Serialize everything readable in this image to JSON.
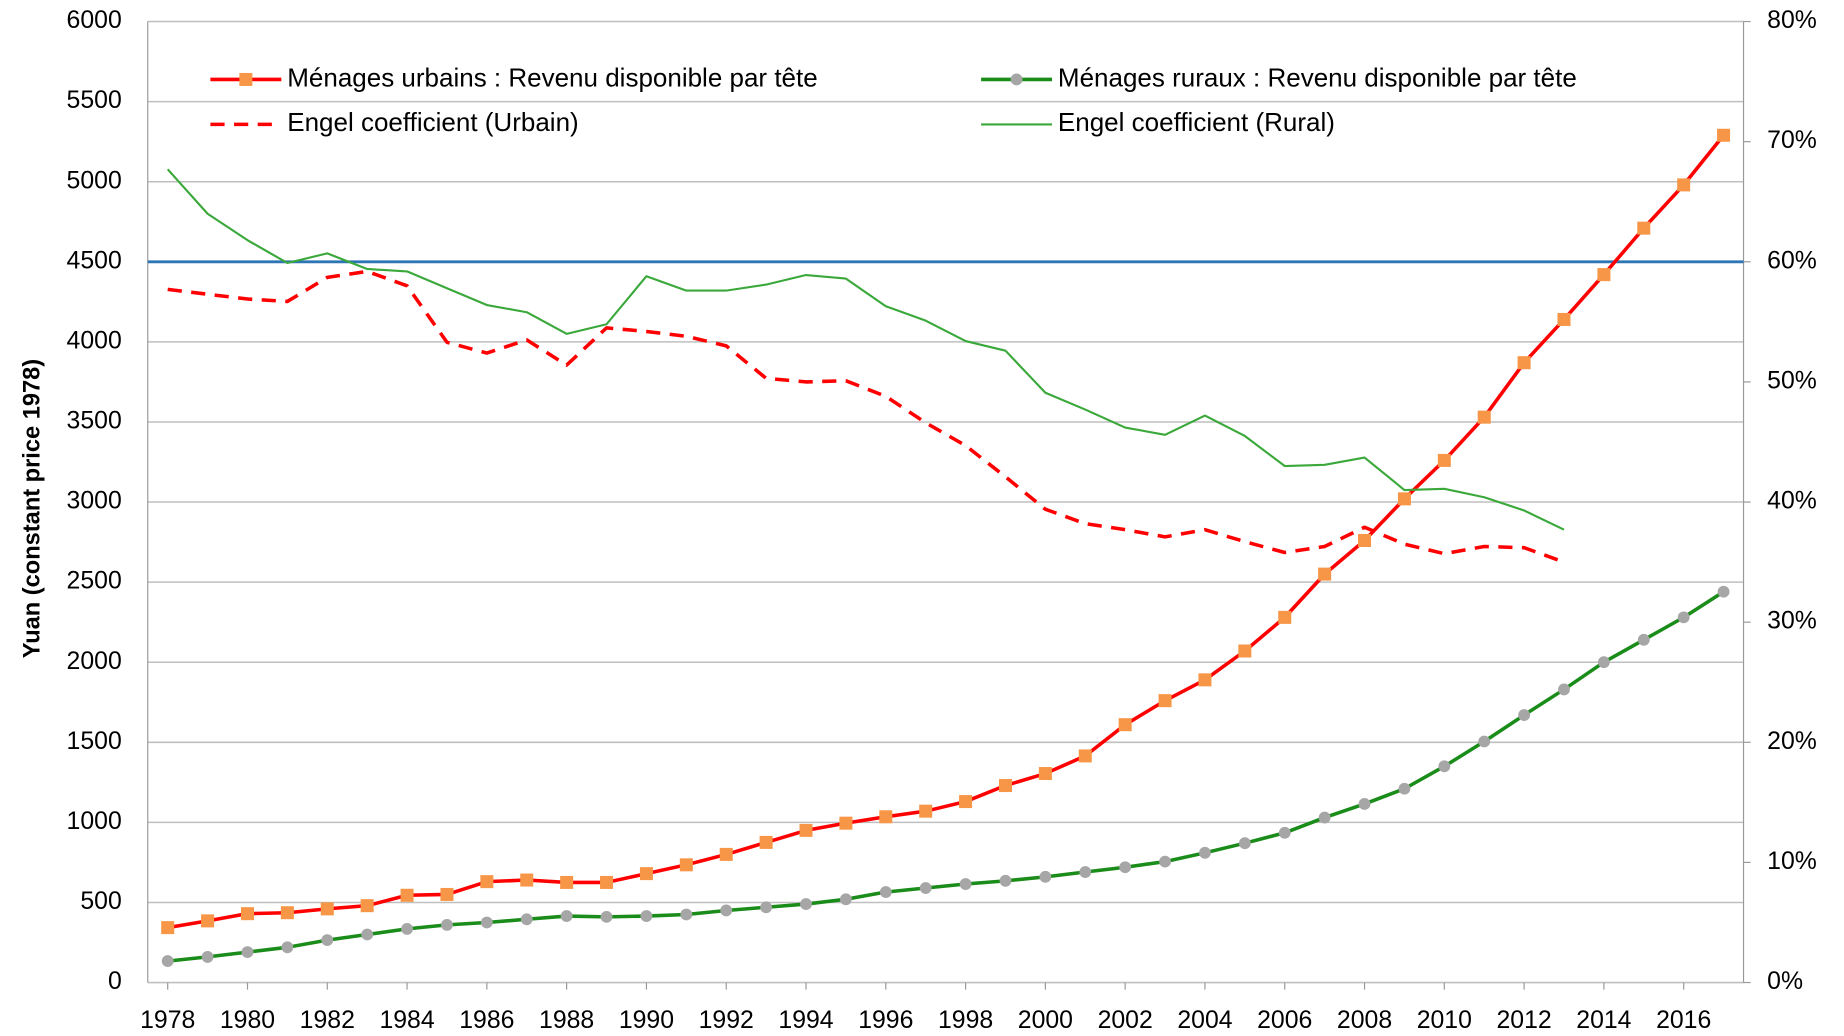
{
  "chart_data": {
    "type": "line",
    "y_axis_label": "Yuan (constant price 1978)",
    "x": [
      1978,
      1979,
      1980,
      1981,
      1982,
      1983,
      1984,
      1985,
      1986,
      1987,
      1988,
      1989,
      1990,
      1991,
      1992,
      1993,
      1994,
      1995,
      1996,
      1997,
      1998,
      1999,
      2000,
      2001,
      2002,
      2003,
      2004,
      2005,
      2006,
      2007,
      2008,
      2009,
      2010,
      2011,
      2012,
      2013,
      2014,
      2015,
      2016,
      2017
    ],
    "series": [
      {
        "name": "Ménages urbains : Revenu disponible par tête",
        "color": "#ff0000",
        "marker": "square",
        "marker_color": "#f79646",
        "dash": false,
        "width": 3,
        "values": [
          343,
          385,
          430,
          436,
          460,
          480,
          545,
          550,
          630,
          640,
          625,
          625,
          680,
          735,
          800,
          875,
          950,
          995,
          1035,
          1070,
          1130,
          1230,
          1305,
          1415,
          1610,
          1760,
          1890,
          2070,
          2280,
          2550,
          2760,
          3020,
          3260,
          3530,
          3870,
          4140,
          4420,
          4710,
          4980,
          5290
        ]
      },
      {
        "name": "Ménages ruraux : Revenu disponible par tête",
        "color": "#1a8c1a",
        "marker": "circle",
        "marker_color": "#a6a6a6",
        "dash": false,
        "width": 3,
        "values": [
          134,
          160,
          190,
          220,
          265,
          300,
          335,
          360,
          375,
          395,
          415,
          410,
          415,
          425,
          450,
          470,
          490,
          520,
          565,
          590,
          615,
          635,
          660,
          690,
          720,
          755,
          810,
          870,
          935,
          1030,
          1115,
          1210,
          1350,
          1505,
          1670,
          1830,
          2000,
          2140,
          2280,
          2440
        ]
      },
      {
        "name": "Engel coefficient (Urbain)",
        "color": "#ff0000",
        "marker": "none",
        "dash": true,
        "width": 3,
        "axis": "y2",
        "values": [
          57.7,
          57.3,
          56.9,
          56.7,
          58.7,
          59.2,
          58.0,
          53.3,
          52.4,
          53.5,
          51.4,
          54.5,
          54.2,
          53.8,
          53.0,
          50.3,
          50.0,
          50.1,
          48.8,
          46.6,
          44.7,
          42.1,
          39.4,
          38.2,
          37.7,
          37.1,
          37.7,
          36.7,
          35.8,
          36.3,
          37.9,
          36.5,
          35.7,
          36.3,
          36.2,
          35.0,
          null,
          null,
          null,
          null
        ]
      },
      {
        "name": "Engel coefficient (Rural)",
        "color": "#3aa83a",
        "marker": "none",
        "dash": false,
        "width": 1.8,
        "axis": "y2",
        "values": [
          67.7,
          64.0,
          61.8,
          59.9,
          60.7,
          59.4,
          59.2,
          57.8,
          56.4,
          55.8,
          54.0,
          54.8,
          58.8,
          57.6,
          57.6,
          58.1,
          58.9,
          58.6,
          56.3,
          55.1,
          53.4,
          52.6,
          49.1,
          47.7,
          46.2,
          45.6,
          47.2,
          45.5,
          43.0,
          43.1,
          43.7,
          41.0,
          41.1,
          40.4,
          39.3,
          37.7,
          null,
          null,
          null,
          null
        ]
      }
    ],
    "reference_line": {
      "axis": "y2",
      "value": 60,
      "color": "#2e75b6"
    },
    "xlim": [
      1977.5,
      2017.5
    ],
    "xticks": [
      1978,
      1980,
      1982,
      1984,
      1986,
      1988,
      1990,
      1992,
      1994,
      1996,
      1998,
      2000,
      2002,
      2004,
      2006,
      2008,
      2010,
      2012,
      2014,
      2016
    ],
    "ylim": [
      0,
      6000
    ],
    "yticks": [
      0,
      500,
      1000,
      1500,
      2000,
      2500,
      3000,
      3500,
      4000,
      4500,
      5000,
      5500,
      6000
    ],
    "y2lim": [
      0,
      80
    ],
    "y2ticks": [
      {
        "value": 0,
        "label": "0%"
      },
      {
        "value": 10,
        "label": "10%"
      },
      {
        "value": 20,
        "label": "20%"
      },
      {
        "value": 30,
        "label": "30%"
      },
      {
        "value": 40,
        "label": "40%"
      },
      {
        "value": 50,
        "label": "50%"
      },
      {
        "value": 60,
        "label": "60%"
      },
      {
        "value": 70,
        "label": "70%"
      },
      {
        "value": 80,
        "label": "80%"
      }
    ],
    "grid": true
  }
}
